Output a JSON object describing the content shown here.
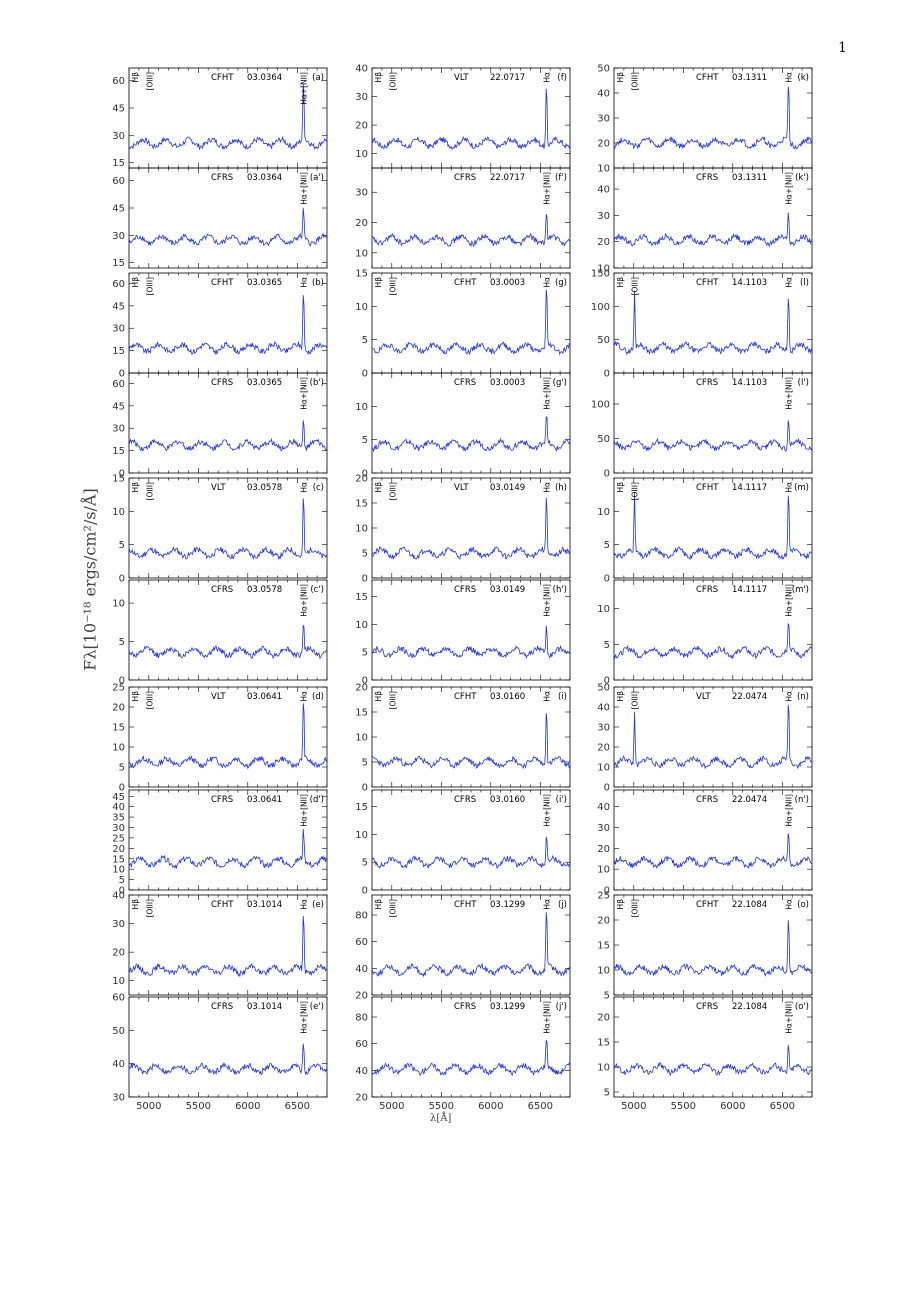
{
  "page_number": "1",
  "ylabel": "Fλ[10⁻¹⁸ ergs/cm²/s/Å]",
  "xlabel": "λ[Å]",
  "colors": {
    "spectrum": "#2233dd",
    "tick_marks": "#888888",
    "frame": "#000000"
  },
  "chart_data": [
    {
      "id": "a",
      "type": "line",
      "instrument": "CFHT",
      "object": "03.0364",
      "panel_label": "(a)",
      "yticks": [
        "15",
        "30",
        "45",
        "60"
      ],
      "lines": [
        "Hβ",
        "[OIII]",
        "Hα+[NII]"
      ],
      "ylim": [
        12,
        67
      ]
    },
    {
      "id": "a'",
      "type": "line",
      "instrument": "CFRS",
      "object": "03.0364",
      "panel_label": "(a')",
      "yticks": [
        "15",
        "30",
        "45",
        "60"
      ],
      "lines": [
        "Hα+[NII]"
      ],
      "ylim": [
        12,
        67
      ]
    },
    {
      "id": "b",
      "type": "line",
      "instrument": "CFHT",
      "object": "03.0365",
      "panel_label": "(b)",
      "yticks": [
        "0",
        "15",
        "30",
        "45",
        "60"
      ],
      "lines": [
        "Hβ",
        "[OIII]",
        "Hα"
      ],
      "ylim": [
        0,
        67
      ]
    },
    {
      "id": "b'",
      "type": "line",
      "instrument": "CFRS",
      "object": "03.0365",
      "panel_label": "(b')",
      "yticks": [
        "0",
        "15",
        "30",
        "45",
        "60"
      ],
      "lines": [
        "Hα+[NII]"
      ],
      "ylim": [
        0,
        67
      ]
    },
    {
      "id": "c",
      "type": "line",
      "instrument": "VLT",
      "object": "03.0578",
      "panel_label": "(c)",
      "yticks": [
        "0",
        "5",
        "10",
        "15"
      ],
      "lines": [
        "Hβ",
        "[OIII]",
        "Hα"
      ],
      "ylim": [
        0,
        15
      ]
    },
    {
      "id": "c'",
      "type": "line",
      "instrument": "CFRS",
      "object": "03.0578",
      "panel_label": "(c')",
      "yticks": [
        "0",
        "5",
        "10"
      ],
      "lines": [
        "Hα+[NII]"
      ],
      "ylim": [
        0,
        13
      ]
    },
    {
      "id": "d",
      "type": "line",
      "instrument": "VLT",
      "object": "03.0641",
      "panel_label": "(d)",
      "yticks": [
        "0",
        "5",
        "10",
        "15",
        "20",
        "25"
      ],
      "lines": [
        "Hβ",
        "[OIII]",
        "Hα"
      ],
      "ylim": [
        0,
        25
      ]
    },
    {
      "id": "d'",
      "type": "line",
      "instrument": "CFRS",
      "object": "03.0641",
      "panel_label": "(d')",
      "yticks": [
        "0",
        "5",
        "10",
        "15",
        "20",
        "25",
        "30",
        "35",
        "40",
        "45"
      ],
      "lines": [
        "Hα+[NII]"
      ],
      "ylim": [
        0,
        48
      ]
    },
    {
      "id": "e",
      "type": "line",
      "instrument": "CFHT",
      "object": "03.1014",
      "panel_label": "(e)",
      "yticks": [
        "10",
        "20",
        "30",
        "40"
      ],
      "lines": [
        "Hβ",
        "[OIII]",
        "Hα"
      ],
      "ylim": [
        5,
        40
      ]
    },
    {
      "id": "e'",
      "type": "line",
      "instrument": "CFRS",
      "object": "03.1014",
      "panel_label": "(e')",
      "yticks": [
        "30",
        "40",
        "50",
        "60"
      ],
      "lines": [
        "Hα+[NII]"
      ],
      "ylim": [
        30,
        60
      ]
    },
    {
      "id": "f",
      "type": "line",
      "instrument": "VLT",
      "object": "22.0717",
      "panel_label": "(f)",
      "yticks": [
        "10",
        "20",
        "30",
        "40"
      ],
      "lines": [
        "Hβ",
        "[OIII]",
        "Hα"
      ],
      "ylim": [
        5,
        40
      ]
    },
    {
      "id": "f'",
      "type": "line",
      "instrument": "CFRS",
      "object": "22.0717",
      "panel_label": "(f')",
      "yticks": [
        "10",
        "20",
        "30"
      ],
      "lines": [
        "Hα+[NII]"
      ],
      "ylim": [
        5,
        38
      ]
    },
    {
      "id": "g",
      "type": "line",
      "instrument": "CFHT",
      "object": "03.0003",
      "panel_label": "(g)",
      "yticks": [
        "0",
        "5",
        "10",
        "15"
      ],
      "lines": [
        "Hβ",
        "[OIII]",
        "Hα"
      ],
      "ylim": [
        0,
        15
      ]
    },
    {
      "id": "g'",
      "type": "line",
      "instrument": "CFRS",
      "object": "03.0003",
      "panel_label": "(g')",
      "yticks": [
        "0",
        "5",
        "10"
      ],
      "lines": [
        "Hα+[NII]"
      ],
      "ylim": [
        0,
        15
      ]
    },
    {
      "id": "h",
      "type": "line",
      "instrument": "VLT",
      "object": "03.0149",
      "panel_label": "(h)",
      "yticks": [
        "0",
        "5",
        "10",
        "15",
        "20"
      ],
      "lines": [
        "Hβ",
        "[OIII]",
        "Hα"
      ],
      "ylim": [
        0,
        20
      ]
    },
    {
      "id": "h'",
      "type": "line",
      "instrument": "CFRS",
      "object": "03.0149",
      "panel_label": "(h')",
      "yticks": [
        "0",
        "5",
        "10",
        "15"
      ],
      "lines": [
        "Hα+[NII]"
      ],
      "ylim": [
        0,
        18
      ]
    },
    {
      "id": "i",
      "type": "line",
      "instrument": "CFHT",
      "object": "03.0160",
      "panel_label": "(i)",
      "yticks": [
        "0",
        "5",
        "10",
        "15",
        "20"
      ],
      "lines": [
        "Hβ",
        "[OIII]",
        "Hα"
      ],
      "ylim": [
        0,
        20
      ]
    },
    {
      "id": "i'",
      "type": "line",
      "instrument": "CFRS",
      "object": "03.0160",
      "panel_label": "(i')",
      "yticks": [
        "0",
        "5",
        "10",
        "15"
      ],
      "lines": [
        "Hα+[NII]"
      ],
      "ylim": [
        0,
        18
      ]
    },
    {
      "id": "j",
      "type": "line",
      "instrument": "CFHT",
      "object": "03.1299",
      "panel_label": "(j)",
      "yticks": [
        "20",
        "40",
        "60",
        "80"
      ],
      "lines": [
        "Hβ",
        "[OIII]",
        "Hα"
      ],
      "ylim": [
        20,
        95
      ]
    },
    {
      "id": "j'",
      "type": "line",
      "instrument": "CFRS",
      "object": "03.1299",
      "panel_label": "(j')",
      "yticks": [
        "20",
        "40",
        "60",
        "80"
      ],
      "lines": [
        "Hα+[NII]"
      ],
      "ylim": [
        20,
        95
      ]
    },
    {
      "id": "k",
      "type": "line",
      "instrument": "CFHT",
      "object": "03.1311",
      "panel_label": "(k)",
      "yticks": [
        "10",
        "20",
        "30",
        "40",
        "50"
      ],
      "lines": [
        "Hβ",
        "[OIII]",
        "Hα"
      ],
      "ylim": [
        10,
        50
      ]
    },
    {
      "id": "k'",
      "type": "line",
      "instrument": "CFRS",
      "object": "03.1311",
      "panel_label": "(k')",
      "yticks": [
        "10",
        "20",
        "30",
        "40"
      ],
      "lines": [
        "Hα+[NII]"
      ],
      "ylim": [
        10,
        48
      ]
    },
    {
      "id": "l",
      "type": "line",
      "instrument": "CFHT",
      "object": "14.1103",
      "panel_label": "(l)",
      "yticks": [
        "0",
        "50",
        "100",
        "150"
      ],
      "lines": [
        "Hβ",
        "[OIII]",
        "Hα"
      ],
      "ylim": [
        0,
        150
      ]
    },
    {
      "id": "l'",
      "type": "line",
      "instrument": "CFRS",
      "object": "14.1103",
      "panel_label": "(l')",
      "yticks": [
        "0",
        "50",
        "100"
      ],
      "lines": [
        "Hα+[NII]"
      ],
      "ylim": [
        0,
        145
      ]
    },
    {
      "id": "m",
      "type": "line",
      "instrument": "CFHT",
      "object": "14.1117",
      "panel_label": "(m)",
      "yticks": [
        "0",
        "5",
        "10"
      ],
      "lines": [
        "Hβ",
        "[OIII]",
        "Hα"
      ],
      "ylim": [
        0,
        15
      ]
    },
    {
      "id": "m'",
      "type": "line",
      "instrument": "CFRS",
      "object": "14.1117",
      "panel_label": "(m')",
      "yticks": [
        "0",
        "5",
        "10"
      ],
      "lines": [
        "Hα+[NII]"
      ],
      "ylim": [
        0,
        14
      ]
    },
    {
      "id": "n",
      "type": "line",
      "instrument": "VLT",
      "object": "22.0474",
      "panel_label": "(n)",
      "yticks": [
        "0",
        "10",
        "20",
        "30",
        "40",
        "50"
      ],
      "lines": [
        "Hβ",
        "[OIII]",
        "Hα"
      ],
      "ylim": [
        0,
        50
      ]
    },
    {
      "id": "n'",
      "type": "line",
      "instrument": "CFRS",
      "object": "22.0474",
      "panel_label": "(n')",
      "yticks": [
        "0",
        "10",
        "20",
        "30",
        "40"
      ],
      "lines": [
        "Hα+[NII]"
      ],
      "ylim": [
        0,
        48
      ]
    },
    {
      "id": "o",
      "type": "line",
      "instrument": "CFHT",
      "object": "22.1084",
      "panel_label": "(o)",
      "yticks": [
        "5",
        "10",
        "15",
        "20",
        "25"
      ],
      "lines": [
        "Hβ",
        "[OIII]",
        "Hα"
      ],
      "ylim": [
        5,
        25
      ]
    },
    {
      "id": "o'",
      "type": "line",
      "instrument": "CFRS",
      "object": "22.1084",
      "panel_label": "(o')",
      "yticks": [
        "5",
        "10",
        "15",
        "20"
      ],
      "lines": [
        "Hα+[NII]"
      ],
      "ylim": [
        4,
        24
      ]
    }
  ],
  "xaxis": {
    "ticks": [
      "5000",
      "5500",
      "6000",
      "6500"
    ],
    "xlim": [
      4800,
      6800
    ]
  }
}
